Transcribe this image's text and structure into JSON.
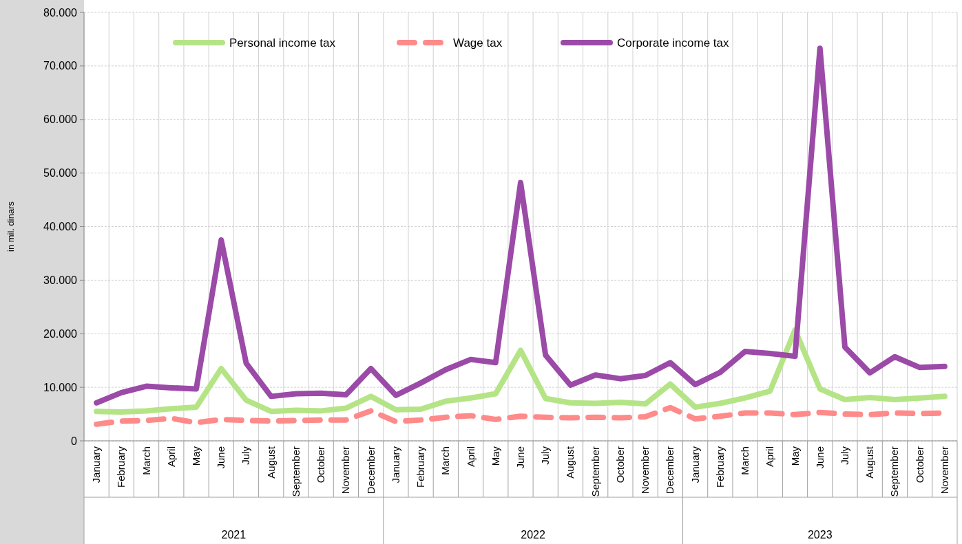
{
  "chart_data": {
    "type": "line",
    "ylabel": "in mil. dinars",
    "categories": [
      "January",
      "February",
      "March",
      "April",
      "May",
      "June",
      "July",
      "August",
      "September",
      "October",
      "November",
      "December",
      "January",
      "February",
      "March",
      "April",
      "May",
      "June",
      "July",
      "August",
      "September",
      "October",
      "November",
      "December",
      "January",
      "February",
      "March",
      "April",
      "May",
      "June",
      "July",
      "August",
      "September",
      "October",
      "November"
    ],
    "annotations": [
      "2021",
      "2022",
      "2023"
    ],
    "series": [
      {
        "name": "Personal income tax",
        "color": "#b5e486",
        "line_style": "solid",
        "values": [
          5500,
          5400,
          5600,
          6000,
          6300,
          13500,
          7600,
          5500,
          5700,
          5600,
          6100,
          8300,
          5800,
          5900,
          7400,
          8000,
          8800,
          16900,
          7900,
          7100,
          7000,
          7200,
          6900,
          10600,
          6300,
          7000,
          8000,
          9300,
          20700,
          9700,
          7700,
          8100,
          7700,
          8000,
          8300
        ]
      },
      {
        "name": "Wage tax",
        "color": "#ff8a8a",
        "line_style": "dashed",
        "values": [
          3100,
          3700,
          3800,
          4200,
          3400,
          4000,
          3800,
          3700,
          3800,
          3900,
          3900,
          5600,
          3600,
          3900,
          4400,
          4700,
          4000,
          4600,
          4400,
          4300,
          4400,
          4300,
          4500,
          6200,
          4100,
          4600,
          5200,
          5200,
          4900,
          5300,
          5000,
          4900,
          5200,
          5100,
          5200
        ]
      },
      {
        "name": "Corporate income tax",
        "color": "#9b4aa8",
        "line_style": "solid",
        "values": [
          7100,
          9000,
          10200,
          9900,
          9700,
          37500,
          14500,
          8300,
          8800,
          8900,
          8600,
          13500,
          8500,
          10800,
          13300,
          15200,
          14600,
          48200,
          16000,
          10400,
          12300,
          11600,
          12200,
          14600,
          10500,
          12800,
          16700,
          16300,
          15800,
          73300,
          17500,
          12700,
          15700,
          13700,
          13900
        ]
      }
    ],
    "ylim": [
      0,
      80000
    ],
    "yticks": [
      0,
      {
        "value": 10000,
        "label": "10.000"
      },
      {
        "value": 20000,
        "label": "20.000"
      },
      {
        "value": 30000,
        "label": "30.000"
      },
      {
        "value": 40000,
        "label": "40.000"
      },
      {
        "value": 50000,
        "label": "50.000"
      },
      {
        "value": 60000,
        "label": "60.000"
      },
      {
        "value": 70000,
        "label": "70.000"
      },
      {
        "value": 80000,
        "label": "80.000"
      }
    ],
    "grid": true,
    "legend": "top",
    "marker": "none"
  }
}
